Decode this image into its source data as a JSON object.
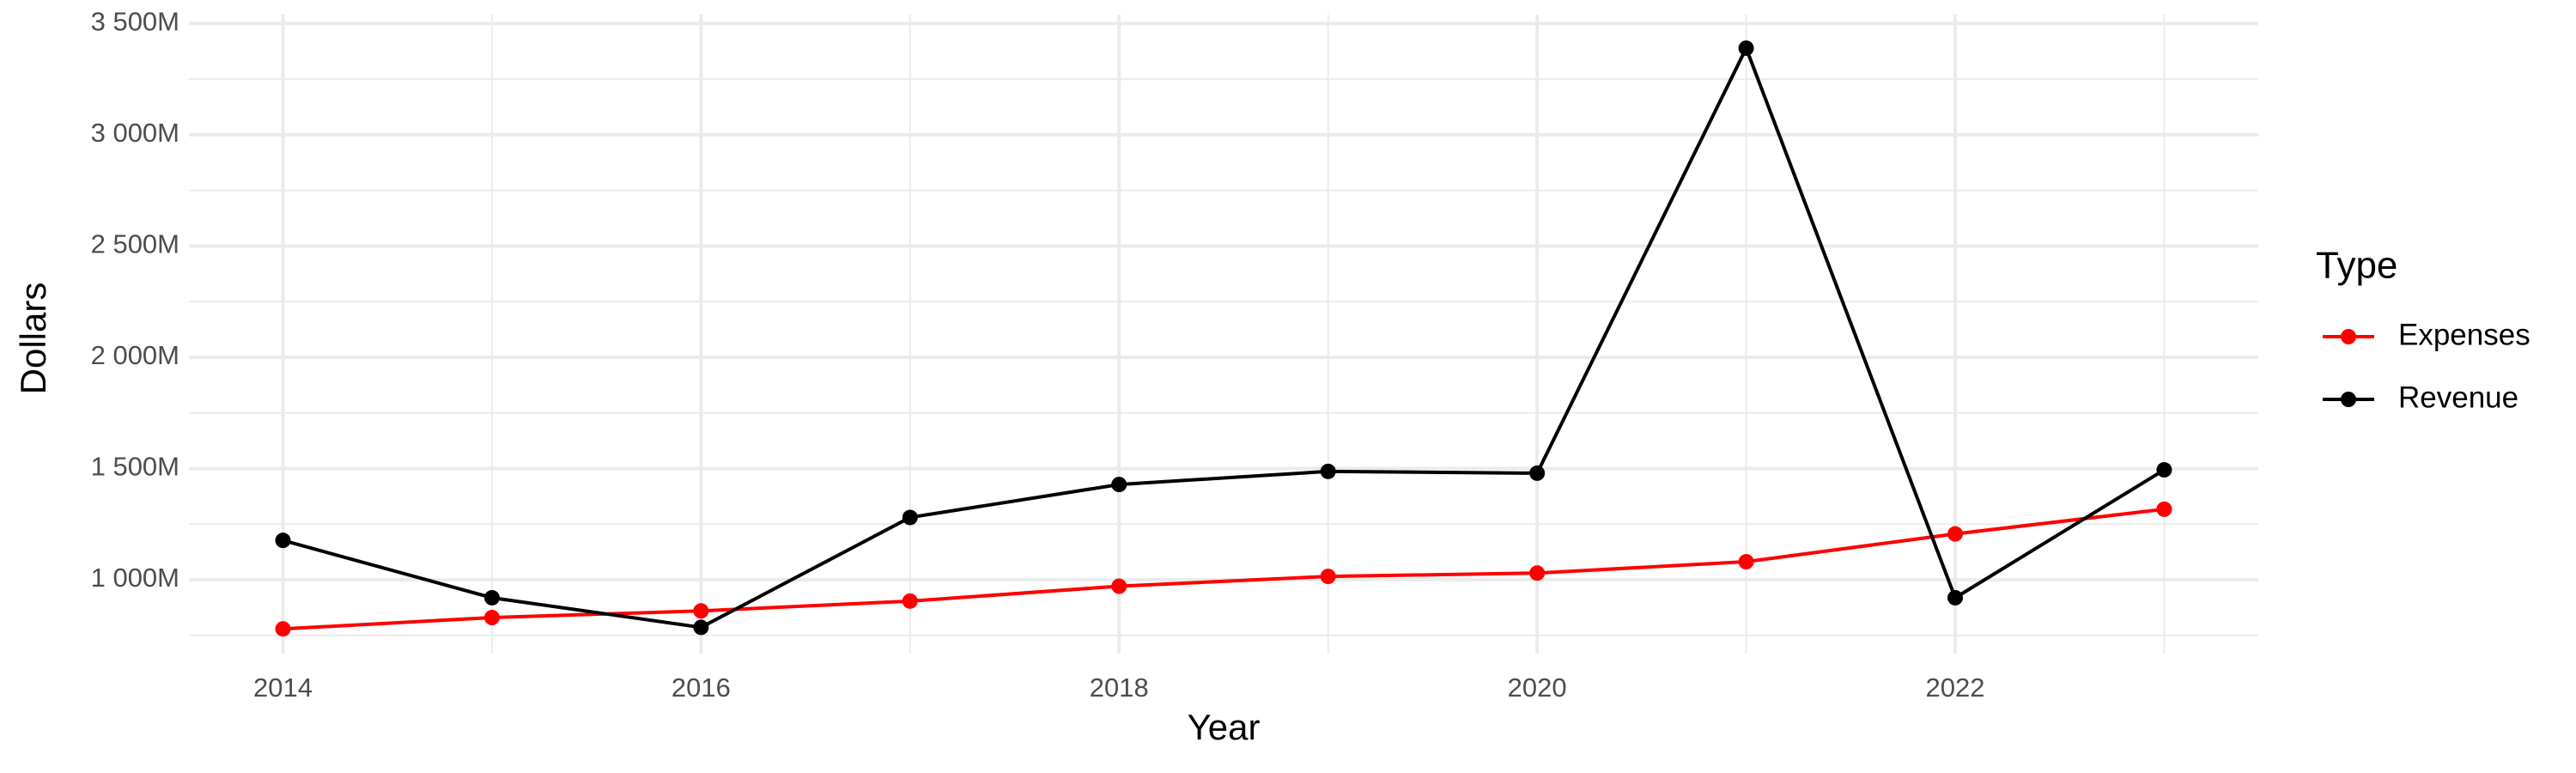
{
  "chart_data": {
    "type": "line",
    "x_label": "Year",
    "y_label": "Dollars",
    "legend_title": "Type",
    "x": [
      2014,
      2015,
      2016,
      2017,
      2018,
      2019,
      2020,
      2021,
      2022,
      2023
    ],
    "series": [
      {
        "name": "Expenses",
        "color": "#ff0000",
        "values": [
          779,
          830,
          860,
          904,
          971,
          1015,
          1030,
          1081,
          1206,
          1317
        ]
      },
      {
        "name": "Revenue",
        "color": "#000000",
        "values": [
          1177,
          919,
          786,
          1280,
          1428,
          1487,
          1479,
          3389,
          919,
          1494
        ]
      }
    ],
    "xlim": [
      2013.55,
      2023.45
    ],
    "xticks": [
      2014,
      2016,
      2018,
      2020,
      2022
    ],
    "xminorticks": [
      2015,
      2017,
      2019,
      2021,
      2023
    ],
    "ylim": [
      668,
      3540
    ],
    "yticks": [
      {
        "value": 1000,
        "label": "1 000M"
      },
      {
        "value": 1500,
        "label": "1 500M"
      },
      {
        "value": 2000,
        "label": "2 000M"
      },
      {
        "value": 2500,
        "label": "2 500M"
      },
      {
        "value": 3000,
        "label": "3 000M"
      },
      {
        "value": 3500,
        "label": "3 500M"
      }
    ],
    "yminorticks": [
      750,
      1250,
      1750,
      2250,
      2750,
      3250
    ],
    "grid": true,
    "legend": "right"
  }
}
